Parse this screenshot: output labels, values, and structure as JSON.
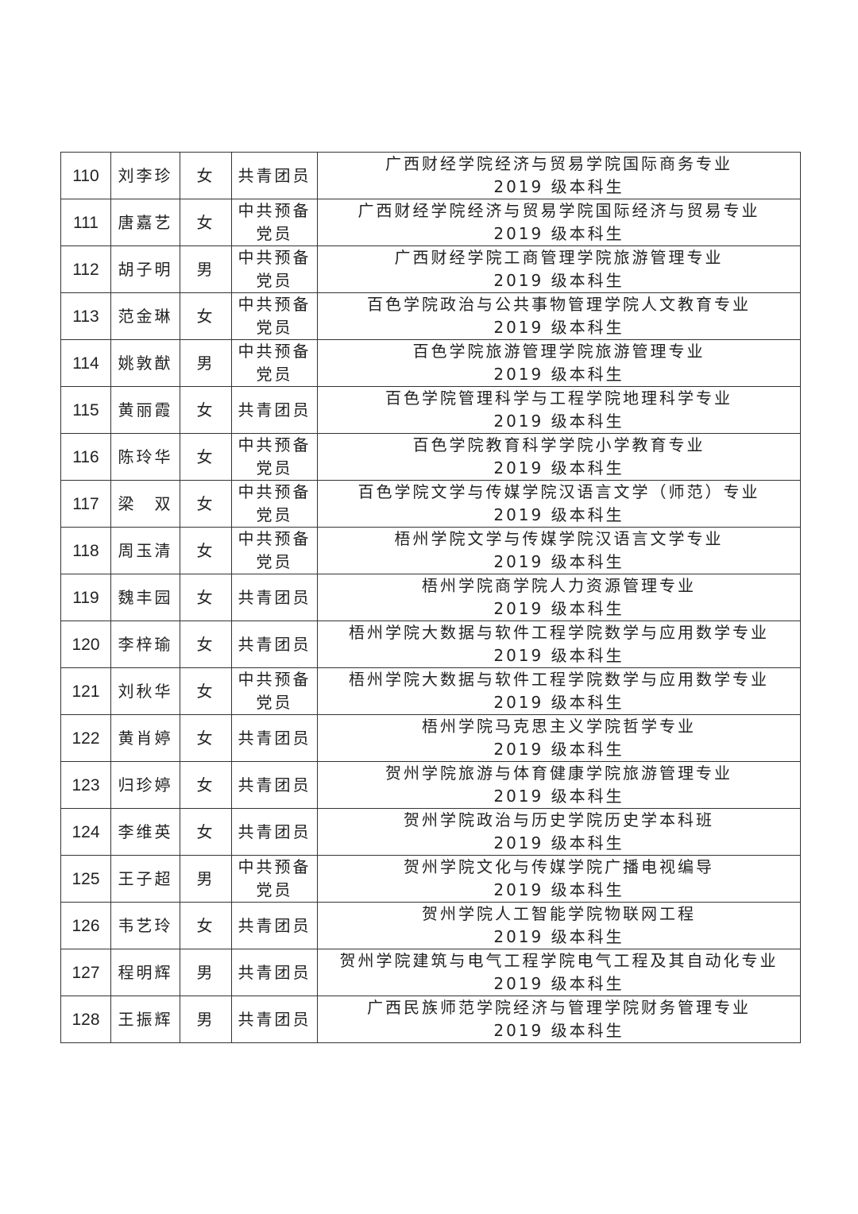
{
  "table": {
    "rows": [
      [
        "110",
        "刘李珍",
        "女",
        "共青团员",
        "广西财经学院经济与贸易学院国际商务专业",
        "2019 级本科生"
      ],
      [
        "111",
        "唐嘉艺",
        "女",
        "中共预备党员",
        "广西财经学院经济与贸易学院国际经济与贸易专业",
        "2019 级本科生"
      ],
      [
        "112",
        "胡子明",
        "男",
        "中共预备党员",
        "广西财经学院工商管理学院旅游管理专业",
        "2019 级本科生"
      ],
      [
        "113",
        "范金琳",
        "女",
        "中共预备党员",
        "百色学院政治与公共事物管理学院人文教育专业",
        "2019 级本科生"
      ],
      [
        "114",
        "姚敦猷",
        "男",
        "中共预备党员",
        "百色学院旅游管理学院旅游管理专业",
        "2019 级本科生"
      ],
      [
        "115",
        "黄丽霞",
        "女",
        "共青团员",
        "百色学院管理科学与工程学院地理科学专业",
        "2019 级本科生"
      ],
      [
        "116",
        "陈玲华",
        "女",
        "中共预备党员",
        "百色学院教育科学学院小学教育专业",
        "2019 级本科生"
      ],
      [
        "117",
        "梁　双",
        "女",
        "中共预备党员",
        "百色学院文学与传媒学院汉语言文学（师范）专业",
        "2019 级本科生"
      ],
      [
        "118",
        "周玉清",
        "女",
        "中共预备党员",
        "梧州学院文学与传媒学院汉语言文学专业",
        "2019 级本科生"
      ],
      [
        "119",
        "魏丰园",
        "女",
        "共青团员",
        "梧州学院商学院人力资源管理专业",
        "2019 级本科生"
      ],
      [
        "120",
        "李梓瑜",
        "女",
        "共青团员",
        "梧州学院大数据与软件工程学院数学与应用数学专业",
        "2019 级本科生"
      ],
      [
        "121",
        "刘秋华",
        "女",
        "中共预备党员",
        "梧州学院大数据与软件工程学院数学与应用数学专业",
        "2019 级本科生"
      ],
      [
        "122",
        "黄肖婷",
        "女",
        "共青团员",
        "梧州学院马克思主义学院哲学专业",
        "2019 级本科生"
      ],
      [
        "123",
        "归珍婷",
        "女",
        "共青团员",
        "贺州学院旅游与体育健康学院旅游管理专业",
        "2019 级本科生"
      ],
      [
        "124",
        "李维英",
        "女",
        "共青团员",
        "贺州学院政治与历史学院历史学本科班",
        "2019 级本科生"
      ],
      [
        "125",
        "王子超",
        "男",
        "中共预备党员",
        "贺州学院文化与传媒学院广播电视编导",
        "2019 级本科生"
      ],
      [
        "126",
        "韦艺玲",
        "女",
        "共青团员",
        "贺州学院人工智能学院物联网工程",
        "2019 级本科生"
      ],
      [
        "127",
        "程明辉",
        "男",
        "共青团员",
        "贺州学院建筑与电气工程学院电气工程及其自动化专业",
        "2019 级本科生"
      ],
      [
        "128",
        "王振辉",
        "男",
        "共青团员",
        "广西民族师范学院经济与管理学院财务管理专业",
        "2019 级本科生"
      ]
    ]
  }
}
